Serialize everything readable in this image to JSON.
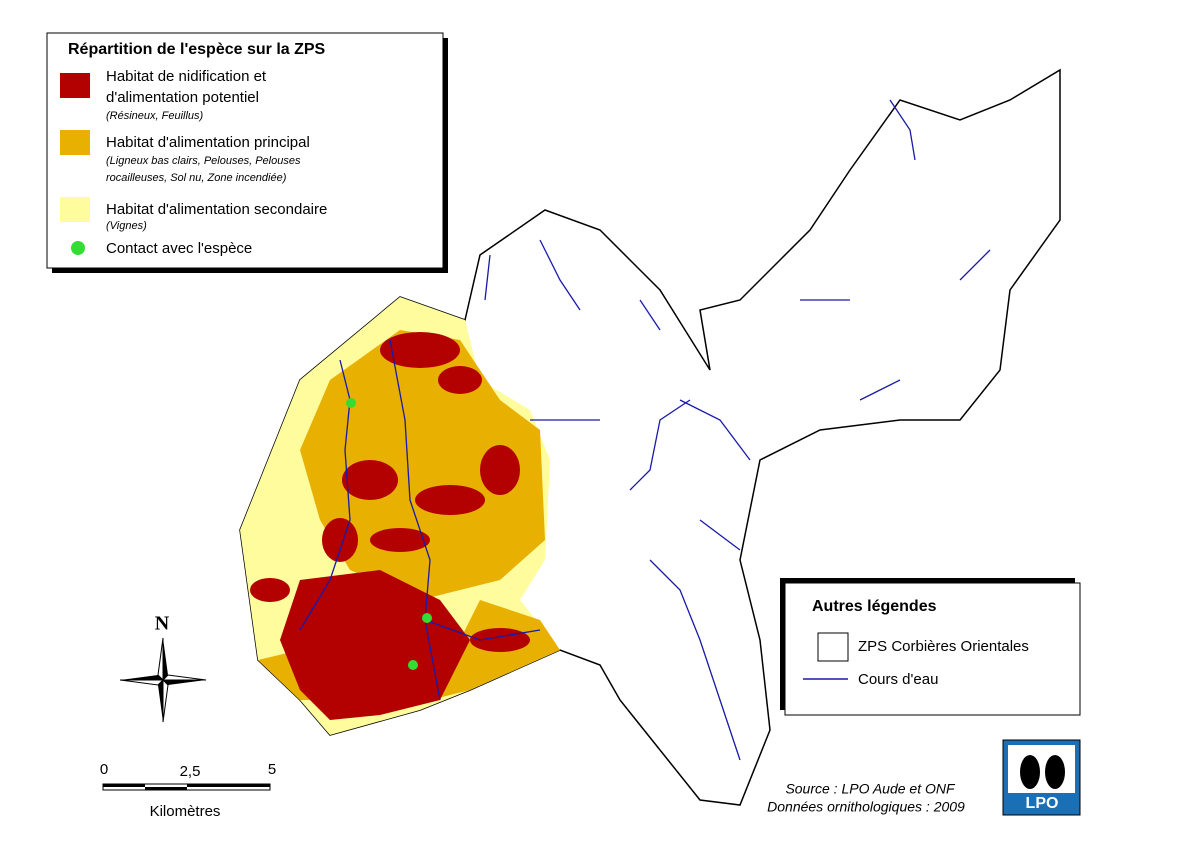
{
  "legend": {
    "title": "Répartition de l'espèce sur la ZPS",
    "items": [
      {
        "label": [
          "Habitat de nidification et",
          "d'alimentation potentiel"
        ],
        "note": [
          "(Résineux, Feuillus)"
        ]
      },
      {
        "label": [
          "Habitat d'alimentation principal"
        ],
        "note": [
          "(Ligneux bas clairs, Pelouses, Pelouses",
          "rocailleuses, Sol nu, Zone incendiée)"
        ]
      },
      {
        "label": [
          "Habitat d'alimentation secondaire"
        ],
        "note": [
          "(Vignes)"
        ]
      },
      {
        "label": [
          "Contact avec l'espèce"
        ],
        "note": []
      }
    ]
  },
  "other_legend": {
    "title": "Autres légendes",
    "items": [
      "ZPS Corbières Orientales",
      "Cours d'eau"
    ]
  },
  "north": "N",
  "scale": {
    "labels": [
      "0",
      "2,5",
      "5"
    ],
    "unit": "Kilomètres"
  },
  "source": [
    "Source : LPO Aude et ONF",
    "Données ornithologiques : 2009"
  ],
  "logo": "LPO"
}
